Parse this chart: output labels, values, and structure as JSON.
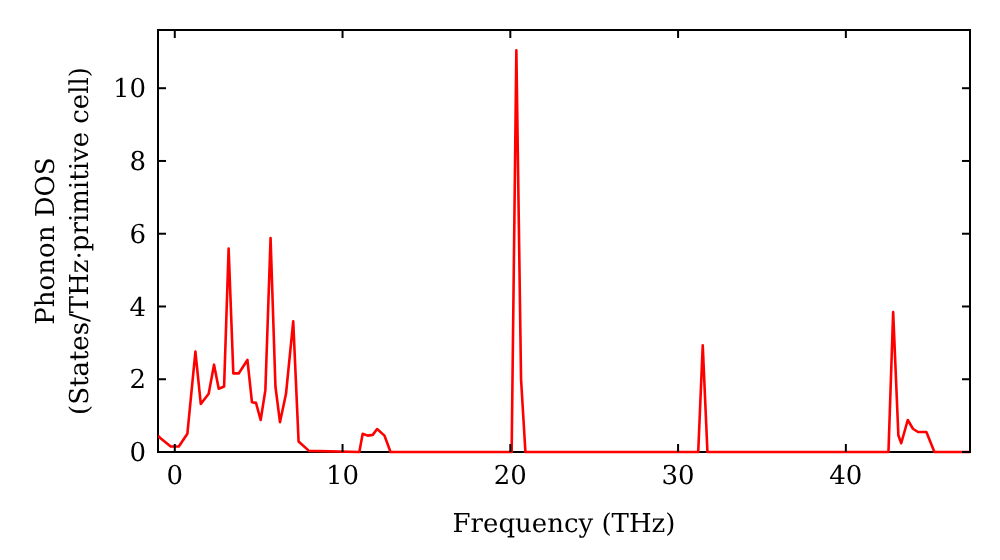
{
  "chart_data": {
    "type": "line",
    "xlabel": "Frequency (THz)",
    "ylabel": "Phonon DOS\n(States/THz·primitive cell)",
    "xlim": [
      -1,
      47.4
    ],
    "ylim": [
      0,
      11.6
    ],
    "xticks": [
      0,
      10,
      20,
      30,
      40
    ],
    "yticks": [
      0,
      2,
      4,
      6,
      8,
      10
    ],
    "grid": false,
    "marker": "none",
    "line_style": "solid",
    "series": [
      {
        "color": "#ff0000",
        "x": [
          -1,
          -0.83,
          -0.24,
          0.24,
          0.75,
          1.23,
          1.55,
          2.02,
          2.34,
          2.62,
          2.94,
          3.21,
          3.49,
          3.81,
          4.33,
          4.6,
          4.84,
          5.12,
          5.4,
          5.71,
          6.0,
          6.27,
          6.63,
          7.06,
          7.38,
          8.0,
          11.0,
          11.2,
          11.5,
          11.8,
          12.06,
          12.5,
          12.86,
          20.08,
          20.36,
          20.64,
          20.9,
          31.2,
          31.47,
          31.75,
          42.54,
          42.82,
          43.13,
          43.3,
          43.69,
          44.0,
          44.3,
          44.8,
          45.28,
          47.4
        ],
        "values": [
          0.45,
          0.37,
          0.15,
          0.15,
          0.5,
          2.76,
          1.32,
          1.6,
          2.4,
          1.74,
          1.8,
          5.59,
          2.16,
          2.16,
          2.53,
          1.37,
          1.35,
          0.88,
          1.7,
          5.88,
          1.8,
          0.82,
          1.6,
          3.59,
          0.29,
          0.03,
          0,
          0.5,
          0.45,
          0.47,
          0.63,
          0.45,
          0,
          0,
          11.04,
          2.0,
          0,
          0,
          2.93,
          0,
          0,
          3.85,
          0.46,
          0.24,
          0.88,
          0.64,
          0.55,
          0.55,
          0,
          0
        ]
      }
    ]
  }
}
